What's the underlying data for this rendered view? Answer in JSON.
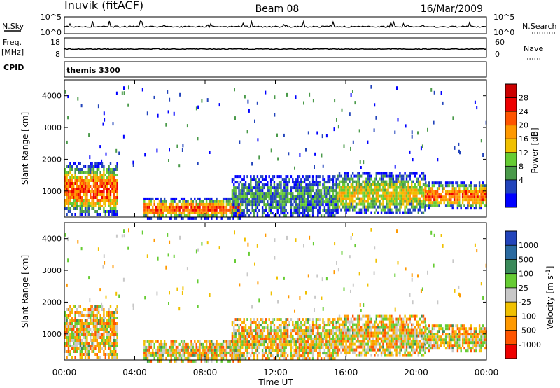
{
  "header": {
    "station": "Inuvik (fitACF)",
    "beam": "Beam 08",
    "date": "16/Mar/2009"
  },
  "noise_panel": {
    "left_label": "N.Sky",
    "left_ticks": [
      "10^5",
      "10^0"
    ],
    "right_label": "N.Search",
    "right_ticks": [
      "10^5",
      "10^0"
    ]
  },
  "freq_panel": {
    "left_label_line1": "Freq.",
    "left_label_line2": "[MHz]",
    "left_ticks": [
      "18",
      "8"
    ],
    "right_label": "Nave",
    "right_ticks": [
      "60",
      "0"
    ]
  },
  "cpid_panel": {
    "label": "CPID",
    "program": "themis 3300"
  },
  "colors": {
    "frame": "#000000",
    "power_scale": [
      "#0000ff",
      "#2244bb",
      "#4a9a4a",
      "#66cc33",
      "#f0c000",
      "#ff9900",
      "#ff5500",
      "#ee0000",
      "#cc0000"
    ],
    "velocity_scale": [
      "#2244bb",
      "#2a6aa0",
      "#3a8a5a",
      "#66cc33",
      "#c8c8c8",
      "#f0c000",
      "#ff9900",
      "#ff5500",
      "#ee0000"
    ]
  },
  "chart_data": [
    {
      "type": "heatmap",
      "panel": "power",
      "ylabel": "Slant Range [km]",
      "ylim": [
        180,
        4500
      ],
      "y_ticks": [
        "1000",
        "2000",
        "3000",
        "4000"
      ],
      "xlim": [
        "00:00",
        "24:00"
      ],
      "colorbar": {
        "label": "Power [dB]",
        "ticks": [
          "4",
          "8",
          "12",
          "16",
          "20",
          "24",
          "28"
        ]
      },
      "echo_regions": [
        {
          "t_start": 0.0,
          "t_end": 3.0,
          "range_start": 300,
          "range_end": 1900,
          "level": "high"
        },
        {
          "t_start": 4.5,
          "t_end": 10.0,
          "range_start": 180,
          "range_end": 800,
          "level": "high"
        },
        {
          "t_start": 9.5,
          "t_end": 15.5,
          "range_start": 200,
          "range_end": 1500,
          "level": "low"
        },
        {
          "t_start": 15.5,
          "t_end": 20.5,
          "range_start": 300,
          "range_end": 1600,
          "level": "medium"
        },
        {
          "t_start": 20.5,
          "t_end": 24.0,
          "range_start": 500,
          "range_end": 1300,
          "level": "high"
        }
      ]
    },
    {
      "type": "heatmap",
      "panel": "velocity",
      "ylabel": "Slant Range [km]",
      "xlabel": "Time UT",
      "ylim": [
        180,
        4500
      ],
      "y_ticks": [
        "1000",
        "2000",
        "3000",
        "4000"
      ],
      "x_ticks": [
        "00:00",
        "04:00",
        "08:00",
        "12:00",
        "16:00",
        "20:00",
        "00:00"
      ],
      "colorbar": {
        "label": "Velocity [m s^-1]",
        "ticks": [
          "1000",
          "500",
          "100",
          "25",
          "-25",
          "-100",
          "-500",
          "-1000"
        ]
      }
    }
  ]
}
